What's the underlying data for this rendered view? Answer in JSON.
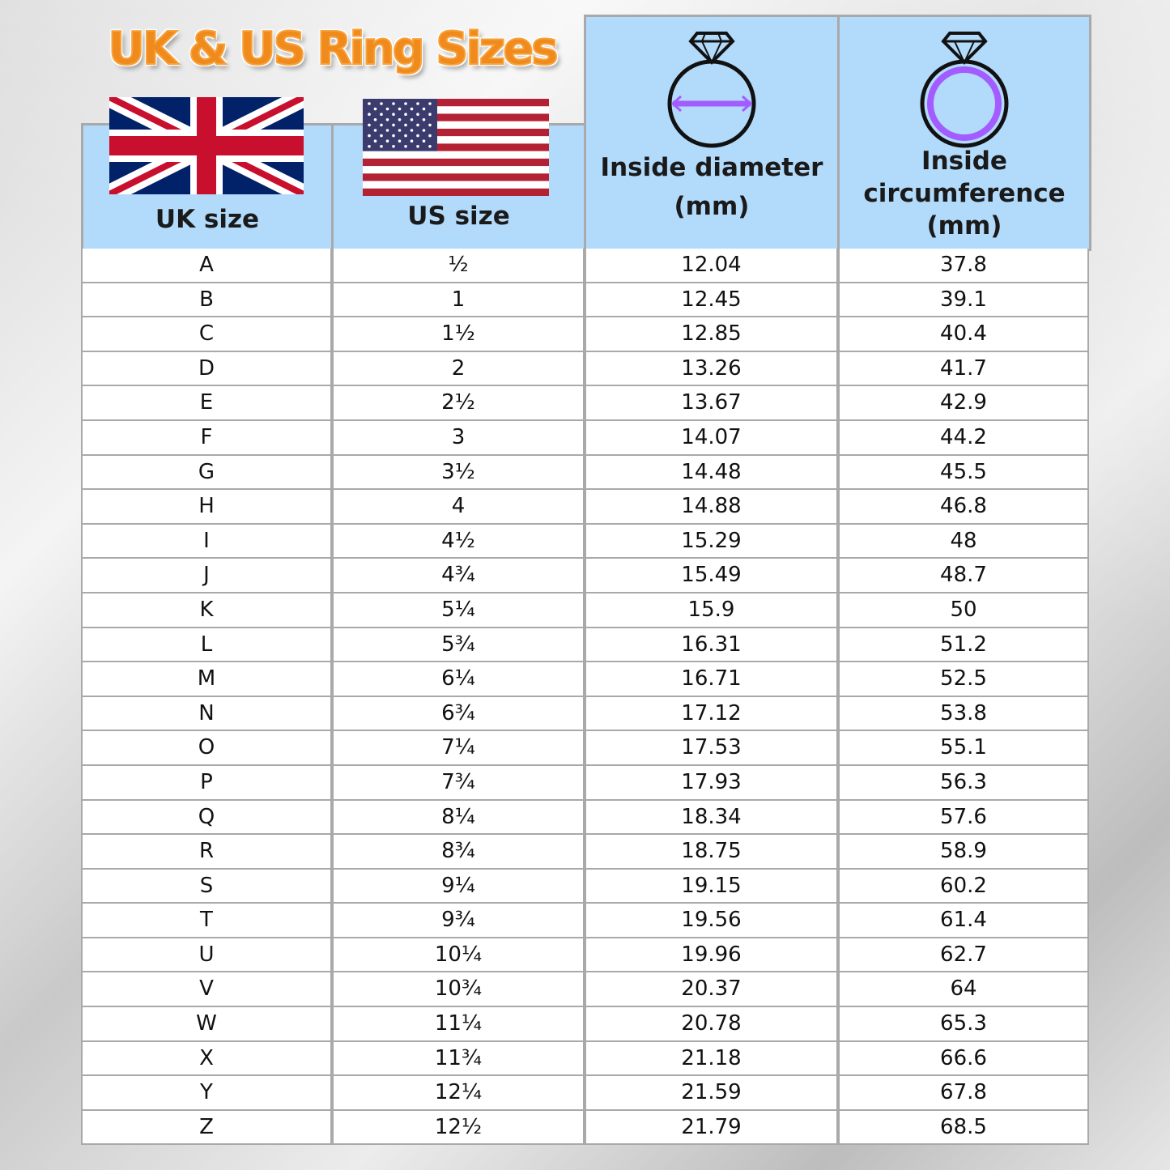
{
  "title": "UK & US Ring Sizes",
  "headers": {
    "uk": "UK size",
    "us": "US size",
    "diameter_line1": "Inside diameter",
    "diameter_line2": "(mm)",
    "circ_line1": "Inside",
    "circ_line2": "circumference",
    "circ_line3": "(mm)"
  },
  "icons": {
    "uk": "uk-flag",
    "us": "us-flag",
    "diameter": "ring-diameter-icon",
    "circumference": "ring-circumference-icon"
  },
  "colors": {
    "header_bg": "#b2dafb",
    "title": "#f08a1c",
    "accent": "#a35cff"
  },
  "rows": [
    [
      "A",
      "½",
      "12.04",
      "37.8"
    ],
    [
      "B",
      "1",
      "12.45",
      "39.1"
    ],
    [
      "C",
      "1½",
      "12.85",
      "40.4"
    ],
    [
      "D",
      "2",
      "13.26",
      "41.7"
    ],
    [
      "E",
      "2½",
      "13.67",
      "42.9"
    ],
    [
      "F",
      "3",
      "14.07",
      "44.2"
    ],
    [
      "G",
      "3½",
      "14.48",
      "45.5"
    ],
    [
      "H",
      "4",
      "14.88",
      "46.8"
    ],
    [
      "I",
      "4½",
      "15.29",
      "48"
    ],
    [
      "J",
      "4¾",
      "15.49",
      "48.7"
    ],
    [
      "K",
      "5¼",
      "15.9",
      "50"
    ],
    [
      "L",
      "5¾",
      "16.31",
      "51.2"
    ],
    [
      "M",
      "6¼",
      "16.71",
      "52.5"
    ],
    [
      "N",
      "6¾",
      "17.12",
      "53.8"
    ],
    [
      "O",
      "7¼",
      "17.53",
      "55.1"
    ],
    [
      "P",
      "7¾",
      "17.93",
      "56.3"
    ],
    [
      "Q",
      "8¼",
      "18.34",
      "57.6"
    ],
    [
      "R",
      "8¾",
      "18.75",
      "58.9"
    ],
    [
      "S",
      "9¼",
      "19.15",
      "60.2"
    ],
    [
      "T",
      "9¾",
      "19.56",
      "61.4"
    ],
    [
      "U",
      "10¼",
      "19.96",
      "62.7"
    ],
    [
      "V",
      "10¾",
      "20.37",
      "64"
    ],
    [
      "W",
      "11¼",
      "20.78",
      "65.3"
    ],
    [
      "X",
      "11¾",
      "21.18",
      "66.6"
    ],
    [
      "Y",
      "12¼",
      "21.59",
      "67.8"
    ],
    [
      "Z",
      "12½",
      "21.79",
      "68.5"
    ]
  ]
}
